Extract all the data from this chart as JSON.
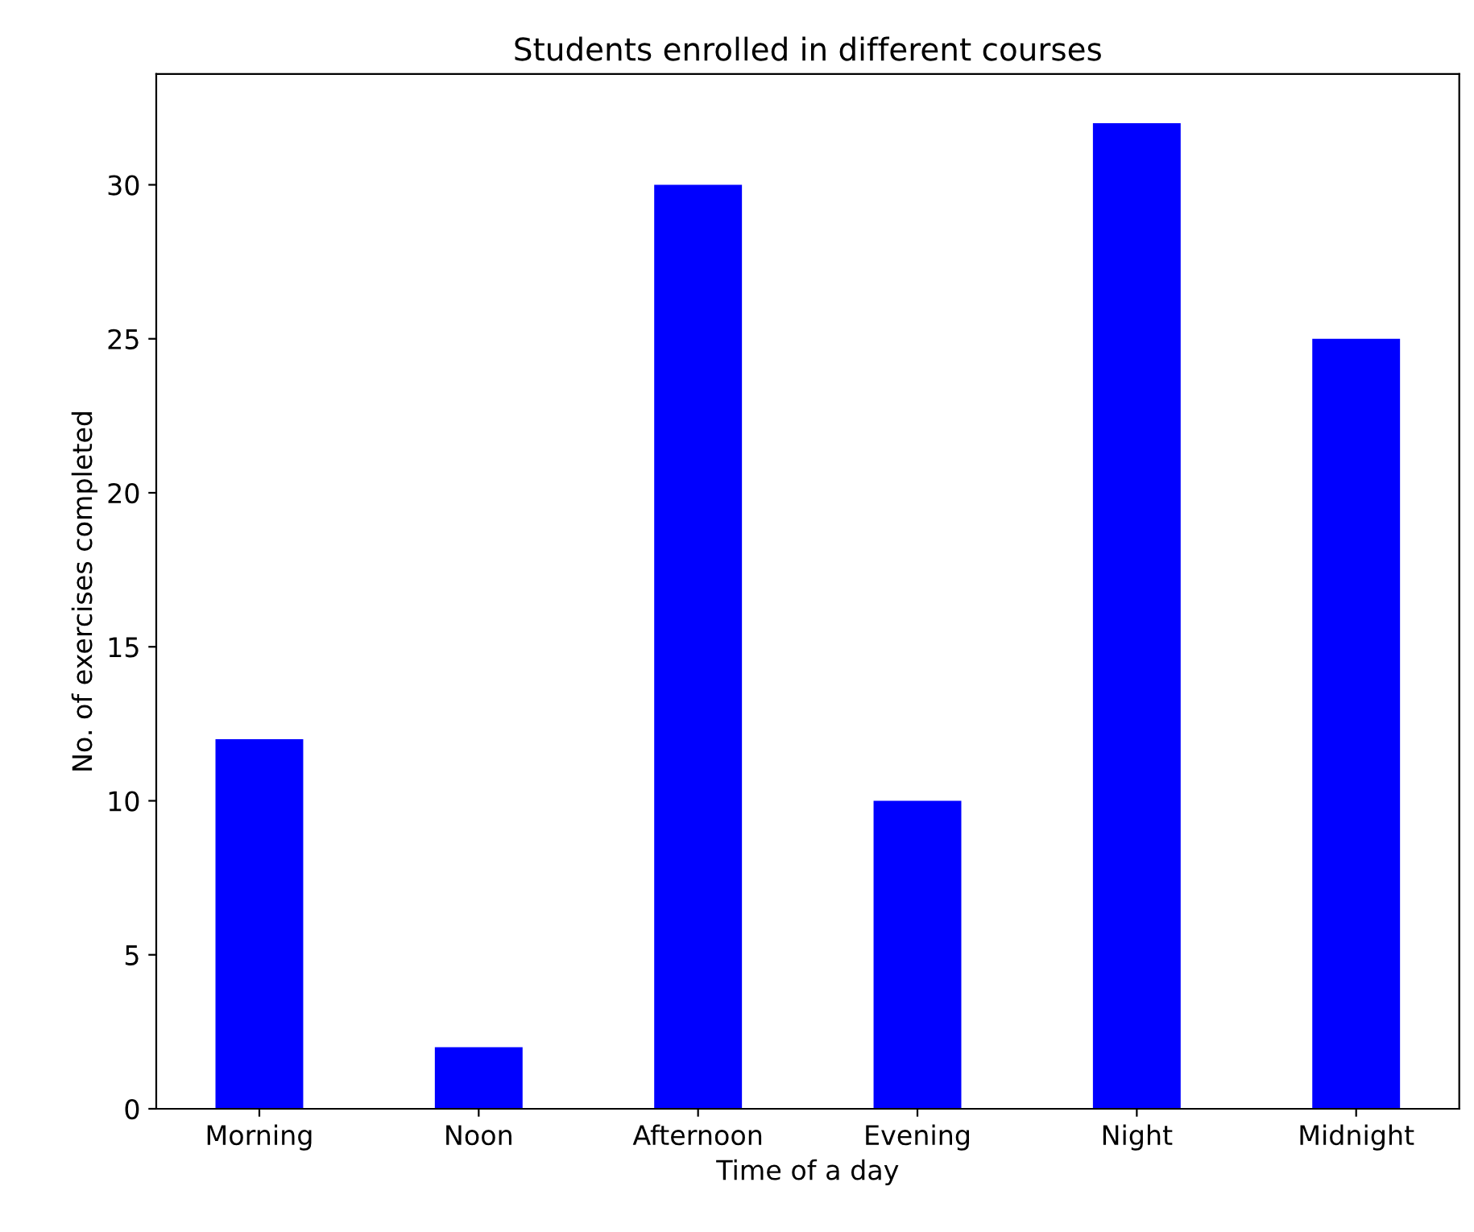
{
  "chart_data": {
    "type": "bar",
    "title": "Students enrolled in different courses",
    "xlabel": "Time of a day",
    "ylabel": "No. of exercises completed",
    "categories": [
      "Morning",
      "Noon",
      "Afternoon",
      "Evening",
      "Night",
      "Midnight"
    ],
    "values": [
      12,
      2,
      30,
      10,
      32,
      25
    ],
    "color": "#0000ff",
    "ylim": [
      0,
      33.6
    ],
    "yticks": [
      0,
      5,
      10,
      15,
      20,
      25,
      30
    ],
    "grid": false
  }
}
